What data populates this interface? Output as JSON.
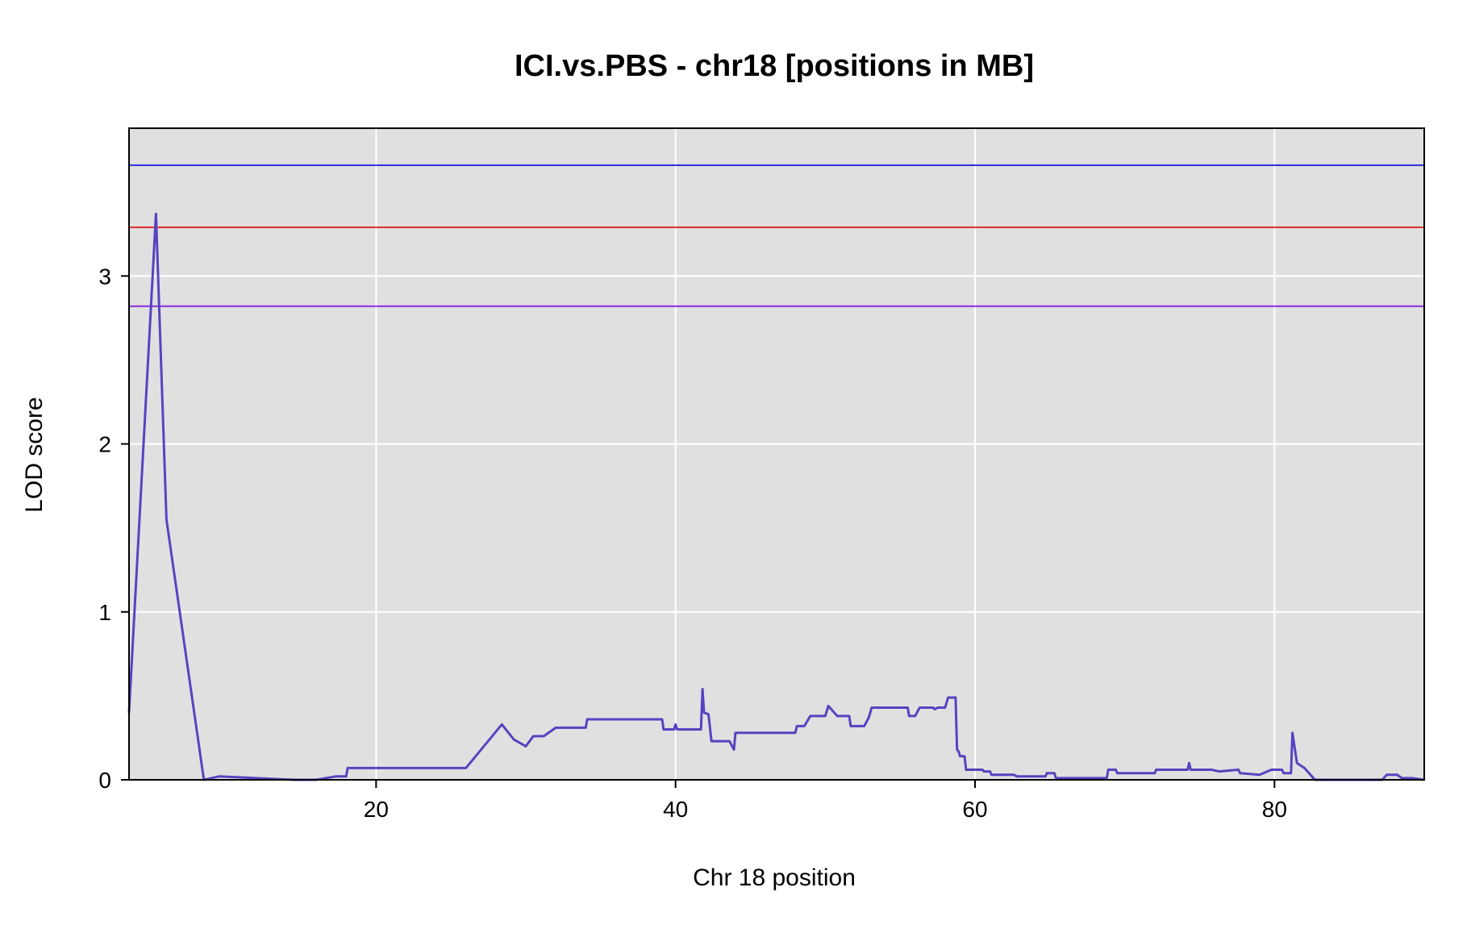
{
  "chart_data": {
    "type": "line",
    "title": "ICI.vs.PBS - chr18 [positions in MB]",
    "xlabel": "Chr 18 position",
    "ylabel": "LOD score",
    "xlim": [
      3.5,
      90.0
    ],
    "ylim": [
      0,
      3.88
    ],
    "x_ticks": [
      20,
      40,
      60,
      80
    ],
    "y_ticks": [
      0,
      1,
      2,
      3
    ],
    "x_tick_labels": [
      "20",
      "40",
      "60",
      "80"
    ],
    "y_tick_labels": [
      "0",
      "1",
      "2",
      "3"
    ],
    "grid": true,
    "background": "#e0e0e0",
    "thresholds": [
      {
        "value": 3.66,
        "color": "#2a2ae0"
      },
      {
        "value": 3.29,
        "color": "#e02a2a"
      },
      {
        "value": 2.82,
        "color": "#8a2ae0"
      }
    ],
    "series": [
      {
        "color": "#5544c0",
        "points": [
          [
            3.5,
            0.4
          ],
          [
            5.3,
            3.37
          ],
          [
            6.0,
            1.55
          ],
          [
            8.5,
            0.0
          ],
          [
            9.5,
            0.02
          ],
          [
            14.5,
            0.0
          ],
          [
            16.0,
            0.0
          ],
          [
            17.3,
            0.02
          ],
          [
            18.0,
            0.02
          ],
          [
            18.1,
            0.07
          ],
          [
            26.0,
            0.07
          ],
          [
            28.4,
            0.33
          ],
          [
            29.2,
            0.24
          ],
          [
            30.0,
            0.2
          ],
          [
            30.5,
            0.26
          ],
          [
            31.2,
            0.26
          ],
          [
            32.0,
            0.31
          ],
          [
            34.0,
            0.31
          ],
          [
            34.1,
            0.36
          ],
          [
            39.1,
            0.36
          ],
          [
            39.2,
            0.3
          ],
          [
            39.9,
            0.3
          ],
          [
            40.0,
            0.33
          ],
          [
            40.1,
            0.3
          ],
          [
            41.7,
            0.3
          ],
          [
            41.8,
            0.54
          ],
          [
            41.9,
            0.4
          ],
          [
            42.2,
            0.39
          ],
          [
            42.4,
            0.23
          ],
          [
            43.6,
            0.23
          ],
          [
            43.9,
            0.18
          ],
          [
            44.0,
            0.28
          ],
          [
            48.0,
            0.28
          ],
          [
            48.1,
            0.32
          ],
          [
            48.6,
            0.32
          ],
          [
            49.0,
            0.38
          ],
          [
            50.0,
            0.38
          ],
          [
            50.2,
            0.44
          ],
          [
            50.8,
            0.38
          ],
          [
            51.6,
            0.38
          ],
          [
            51.7,
            0.32
          ],
          [
            52.6,
            0.32
          ],
          [
            52.9,
            0.37
          ],
          [
            53.1,
            0.43
          ],
          [
            55.5,
            0.43
          ],
          [
            55.6,
            0.38
          ],
          [
            56.0,
            0.38
          ],
          [
            56.3,
            0.43
          ],
          [
            57.2,
            0.43
          ],
          [
            57.3,
            0.42
          ],
          [
            57.5,
            0.43
          ],
          [
            58.0,
            0.43
          ],
          [
            58.2,
            0.49
          ],
          [
            58.7,
            0.49
          ],
          [
            58.8,
            0.18
          ],
          [
            58.9,
            0.17
          ],
          [
            59.0,
            0.14
          ],
          [
            59.3,
            0.14
          ],
          [
            59.4,
            0.06
          ],
          [
            60.5,
            0.06
          ],
          [
            60.6,
            0.05
          ],
          [
            61.0,
            0.05
          ],
          [
            61.1,
            0.03
          ],
          [
            62.6,
            0.03
          ],
          [
            62.8,
            0.02
          ],
          [
            64.7,
            0.02
          ],
          [
            64.8,
            0.04
          ],
          [
            65.3,
            0.04
          ],
          [
            65.4,
            0.01
          ],
          [
            68.8,
            0.01
          ],
          [
            68.9,
            0.06
          ],
          [
            69.4,
            0.06
          ],
          [
            69.5,
            0.04
          ],
          [
            72.0,
            0.04
          ],
          [
            72.1,
            0.06
          ],
          [
            74.2,
            0.06
          ],
          [
            74.3,
            0.1
          ],
          [
            74.4,
            0.06
          ],
          [
            75.8,
            0.06
          ],
          [
            76.3,
            0.05
          ],
          [
            77.6,
            0.06
          ],
          [
            77.7,
            0.04
          ],
          [
            79.0,
            0.03
          ],
          [
            79.8,
            0.06
          ],
          [
            80.5,
            0.06
          ],
          [
            80.6,
            0.04
          ],
          [
            81.1,
            0.04
          ],
          [
            81.2,
            0.28
          ],
          [
            81.5,
            0.1
          ],
          [
            82.0,
            0.07
          ],
          [
            82.7,
            0.0
          ],
          [
            87.2,
            0.0
          ],
          [
            87.5,
            0.03
          ],
          [
            88.2,
            0.03
          ],
          [
            88.5,
            0.01
          ],
          [
            89.2,
            0.01
          ],
          [
            90.0,
            0.0
          ]
        ]
      }
    ]
  }
}
